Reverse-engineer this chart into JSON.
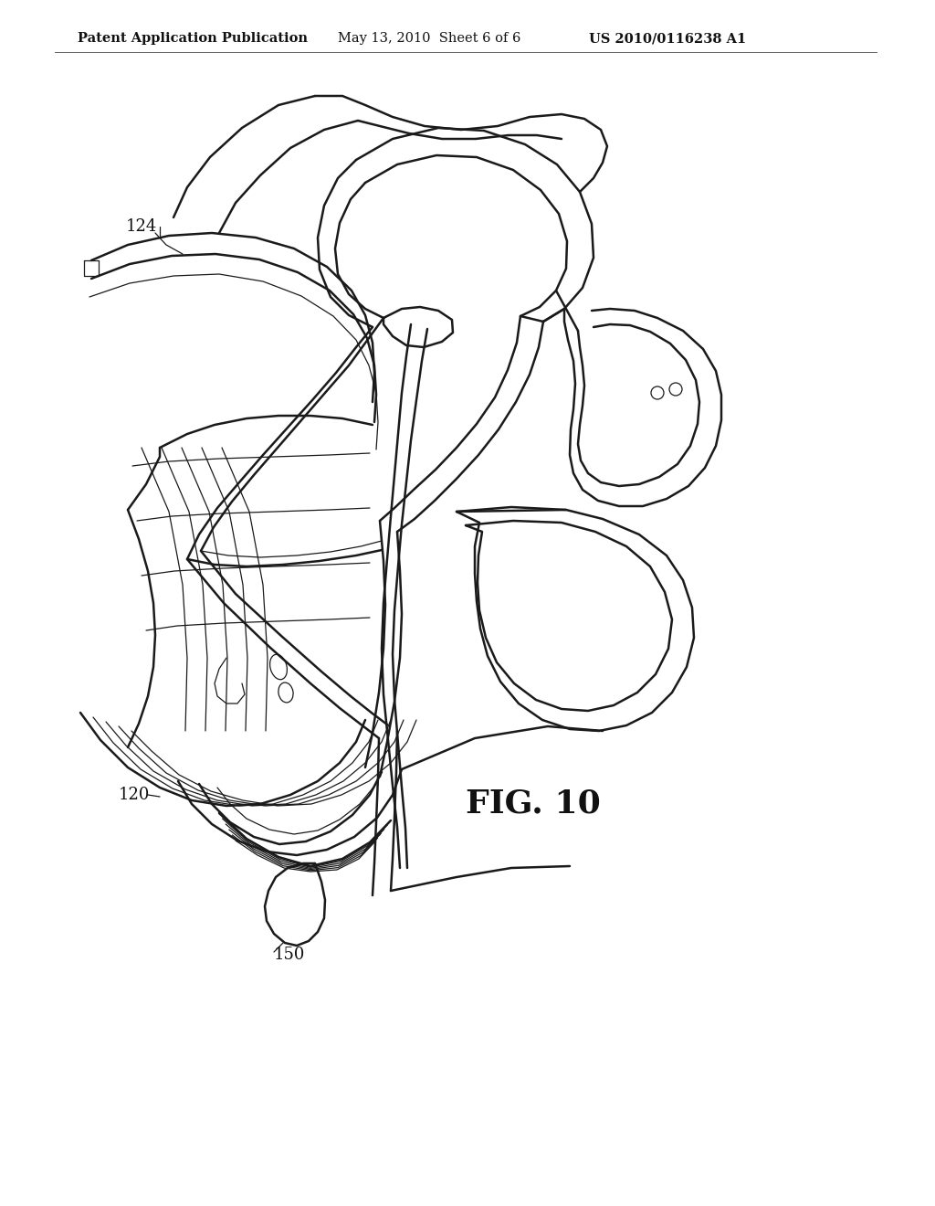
{
  "background_color": "#ffffff",
  "line_color": "#1a1a1a",
  "lw_main": 1.8,
  "lw_thin": 0.9,
  "lw_thick": 2.2,
  "header_left": "Patent Application Publication",
  "header_center": "May 13, 2010  Sheet 6 of 6",
  "header_right": "US 2010/0116238 A1",
  "figure_label": "FIG. 10",
  "label_124": "124",
  "label_120": "120",
  "label_150": "150",
  "header_fontsize": 10.5,
  "label_fontsize": 13,
  "fig_label_fontsize": 26
}
